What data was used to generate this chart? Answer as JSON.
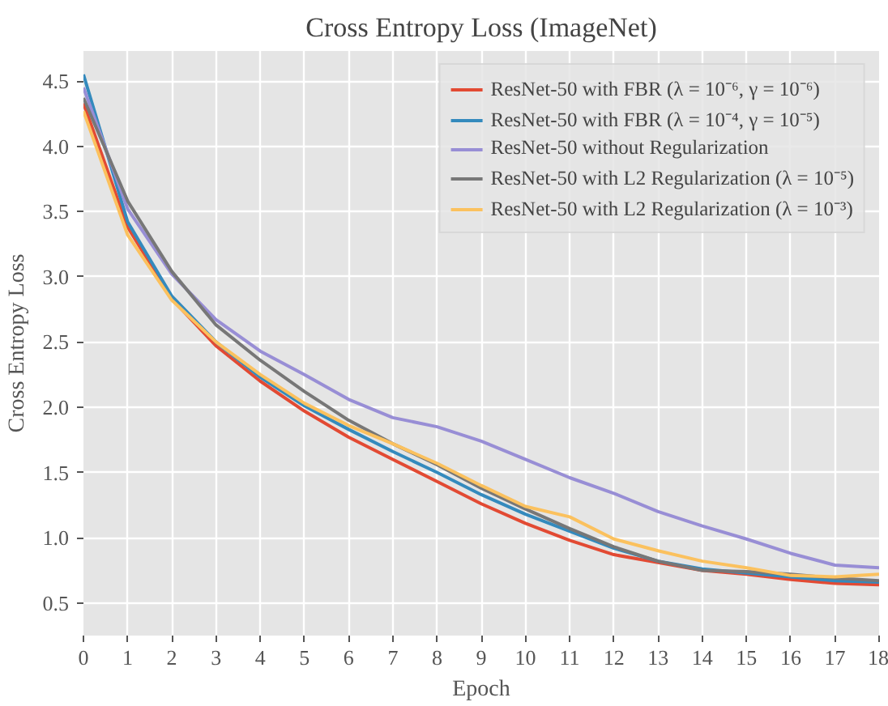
{
  "chart_data": {
    "type": "line",
    "title": "Cross Entropy Loss (ImageNet)",
    "xlabel": "Epoch",
    "ylabel": "Cross Entropy Loss",
    "x": [
      0,
      1,
      2,
      3,
      4,
      5,
      6,
      7,
      8,
      9,
      10,
      11,
      12,
      13,
      14,
      15,
      16,
      17,
      18
    ],
    "series": [
      {
        "name": "ResNet-50 with FBR (λ = 10⁻⁶, γ = 10⁻⁶)",
        "color": "#e24a33",
        "values": [
          4.33,
          3.38,
          2.83,
          2.47,
          2.2,
          1.97,
          1.77,
          1.6,
          1.43,
          1.26,
          1.11,
          0.98,
          0.87,
          0.81,
          0.75,
          0.72,
          0.68,
          0.65,
          0.64
        ]
      },
      {
        "name": "ResNet-50 with FBR (λ = 10⁻⁴, γ = 10⁻⁵)",
        "color": "#348abd",
        "values": [
          4.55,
          3.42,
          2.85,
          2.5,
          2.23,
          2.01,
          1.83,
          1.66,
          1.5,
          1.33,
          1.18,
          1.05,
          0.92,
          0.82,
          0.76,
          0.73,
          0.7,
          0.67,
          0.66
        ]
      },
      {
        "name": "ResNet-50 without Regularization",
        "color": "#988ed5",
        "values": [
          4.45,
          3.52,
          3.02,
          2.67,
          2.43,
          2.25,
          2.06,
          1.92,
          1.85,
          1.74,
          1.6,
          1.46,
          1.34,
          1.2,
          1.09,
          0.99,
          0.88,
          0.79,
          0.77
        ]
      },
      {
        "name": "ResNet-50 with L2 Regularization (λ = 10⁻⁵)",
        "color": "#777777",
        "values": [
          4.37,
          3.58,
          3.04,
          2.63,
          2.36,
          2.12,
          1.9,
          1.72,
          1.56,
          1.38,
          1.22,
          1.07,
          0.93,
          0.82,
          0.75,
          0.74,
          0.72,
          0.69,
          0.67
        ]
      },
      {
        "name": "ResNet-50 with L2 Regularization (λ = 10⁻³)",
        "color": "#fbc15e",
        "values": [
          4.27,
          3.32,
          2.82,
          2.5,
          2.25,
          2.03,
          1.86,
          1.72,
          1.57,
          1.4,
          1.24,
          1.16,
          0.99,
          0.9,
          0.82,
          0.77,
          0.71,
          0.7,
          0.72
        ]
      }
    ],
    "xlim": [
      0,
      18
    ],
    "ylim": [
      0.25,
      4.73
    ],
    "xticks": [
      0,
      1,
      2,
      3,
      4,
      5,
      6,
      7,
      8,
      9,
      10,
      11,
      12,
      13,
      14,
      15,
      16,
      17,
      18
    ],
    "yticks": [
      0.5,
      {
        "value": 1,
        "label": "1.0"
      },
      1.5,
      {
        "value": 2,
        "label": "2.0"
      },
      2.5,
      {
        "value": 3,
        "label": "3.0"
      },
      3.5,
      {
        "value": 4,
        "label": "4.0"
      },
      4.5
    ],
    "grid": true,
    "legend": "top right",
    "marker": "none",
    "line_style": "solid"
  }
}
